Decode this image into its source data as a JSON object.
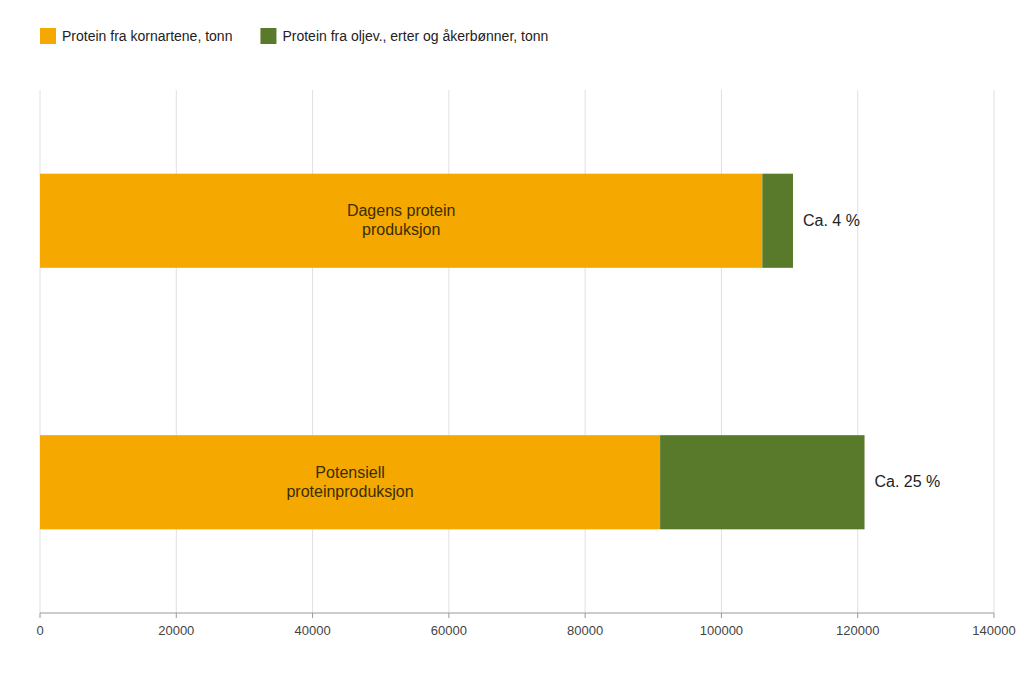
{
  "chart_data": {
    "type": "bar",
    "orientation": "horizontal",
    "stacked": true,
    "categories": [
      "Dagens protein\nproduksjon",
      "Potensiell\nproteinproduksjon"
    ],
    "series": [
      {
        "name": "Protein fra kornartene, tonn",
        "color": "#F5A800",
        "values": [
          106000,
          91000
        ]
      },
      {
        "name": "Protein fra oljev., erter og åkerbønner, tonn",
        "color": "#5A7A2B",
        "values": [
          4500,
          30000
        ]
      }
    ],
    "annotations": [
      "Ca. 4 %",
      "Ca. 25 %"
    ],
    "xlim": [
      0,
      140000
    ],
    "xticks": [
      0,
      20000,
      40000,
      60000,
      80000,
      100000,
      120000,
      140000
    ],
    "grid": true,
    "legend": "top"
  }
}
